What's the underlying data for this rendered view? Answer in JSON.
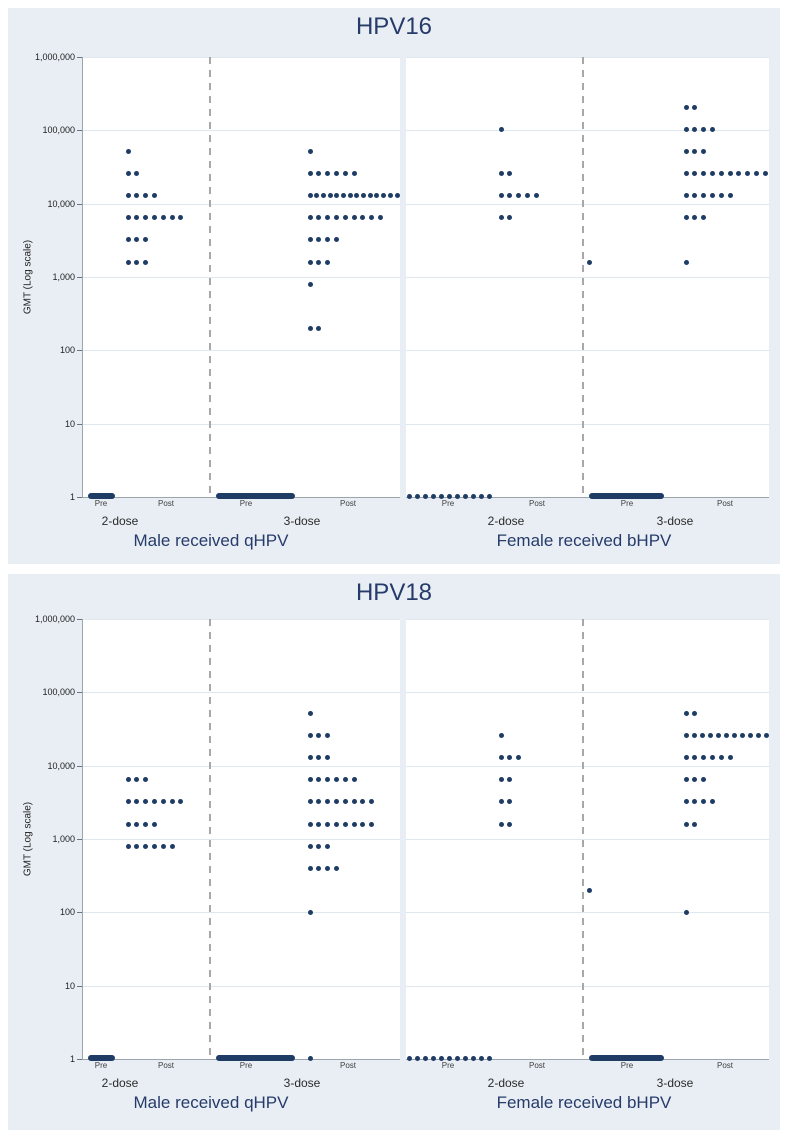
{
  "figure": {
    "background_color": "#e8eef4",
    "dot_color": "#1e3c64",
    "title_color": "#263b6a",
    "gridline_color": "#dfe8ef",
    "legend": "none"
  },
  "chart_data": [
    {
      "type": "scatter",
      "title": "HPV16",
      "ylabel": "GMT (Log scale)",
      "yscale": "log",
      "ylim": [
        1,
        1000000
      ],
      "yticks": [
        "1,000,000",
        "100,000",
        "10,000",
        "1,000",
        "100",
        "10",
        "1"
      ],
      "ytick_values": [
        1000000,
        100000,
        10000,
        1000,
        100,
        10,
        1
      ],
      "grid": "horizontal log decades",
      "panels": [
        {
          "label": "Male received qHPV",
          "groups": [
            {
              "dose": "2-dose",
              "pre_label": "Pre",
              "post_label": "Post",
              "pre": {
                "value": 1,
                "style": "dense",
                "count": null,
                "note": "dense row of overlapping points at GMT=1",
                "extra_points": []
              },
              "post_rows": [
                {
                  "value": 51200,
                  "count": 1
                },
                {
                  "value": 25600,
                  "count": 2
                },
                {
                  "value": 12800,
                  "count": 4
                },
                {
                  "value": 6400,
                  "count": 7
                },
                {
                  "value": 3200,
                  "count": 3
                },
                {
                  "value": 1600,
                  "count": 3
                }
              ]
            },
            {
              "dose": "3-dose",
              "pre_label": "Pre",
              "post_label": "Post",
              "pre": {
                "value": 1,
                "style": "dense",
                "count": null,
                "note": "dense row of overlapping points at GMT=1",
                "extra_points": []
              },
              "post_rows": [
                {
                  "value": 51200,
                  "count": 1
                },
                {
                  "value": 25600,
                  "count": 6
                },
                {
                  "value": 12800,
                  "count": 14
                },
                {
                  "value": 6400,
                  "count": 9
                },
                {
                  "value": 3200,
                  "count": 4
                },
                {
                  "value": 1600,
                  "count": 3
                },
                {
                  "value": 800,
                  "count": 1
                },
                {
                  "value": 200,
                  "count": 2
                }
              ]
            }
          ]
        },
        {
          "label": "Female received bHPV",
          "groups": [
            {
              "dose": "2-dose",
              "pre_label": "Pre",
              "post_label": "Post",
              "pre": {
                "value": 1,
                "style": "spaced",
                "count": 11,
                "note": "11 separated points at GMT=1",
                "extra_points": []
              },
              "post_rows": [
                {
                  "value": 102400,
                  "count": 1
                },
                {
                  "value": 25600,
                  "count": 2
                },
                {
                  "value": 12800,
                  "count": 5
                },
                {
                  "value": 6400,
                  "count": 2
                }
              ]
            },
            {
              "dose": "3-dose",
              "pre_label": "Pre",
              "post_label": "Post",
              "pre": {
                "value": 1,
                "style": "dense",
                "count": null,
                "note": "dense row of overlapping points at GMT=1",
                "extra_points": [
                  {
                    "value": 1600,
                    "count": 1
                  }
                ]
              },
              "post_rows": [
                {
                  "value": 204800,
                  "count": 2
                },
                {
                  "value": 102400,
                  "count": 4
                },
                {
                  "value": 51200,
                  "count": 3
                },
                {
                  "value": 25600,
                  "count": 10
                },
                {
                  "value": 12800,
                  "count": 6
                },
                {
                  "value": 6400,
                  "count": 3
                },
                {
                  "value": 1600,
                  "count": 1
                }
              ]
            }
          ]
        }
      ]
    },
    {
      "type": "scatter",
      "title": "HPV18",
      "ylabel": "GMT (Log scale)",
      "yscale": "log",
      "ylim": [
        1,
        1000000
      ],
      "yticks": [
        "1,000,000",
        "100,000",
        "10,000",
        "1,000",
        "100",
        "10",
        "1"
      ],
      "ytick_values": [
        1000000,
        100000,
        10000,
        1000,
        100,
        10,
        1
      ],
      "grid": "horizontal log decades",
      "panels": [
        {
          "label": "Male received qHPV",
          "groups": [
            {
              "dose": "2-dose",
              "pre_label": "Pre",
              "post_label": "Post",
              "pre": {
                "value": 1,
                "style": "dense",
                "count": null,
                "note": "dense row of overlapping points at GMT=1",
                "extra_points": []
              },
              "post_rows": [
                {
                  "value": 6400,
                  "count": 3
                },
                {
                  "value": 3200,
                  "count": 7
                },
                {
                  "value": 1600,
                  "count": 4
                },
                {
                  "value": 800,
                  "count": 6
                }
              ]
            },
            {
              "dose": "3-dose",
              "pre_label": "Pre",
              "post_label": "Post",
              "pre": {
                "value": 1,
                "style": "dense",
                "count": null,
                "note": "dense row of overlapping points at GMT=1",
                "extra_points": []
              },
              "post_rows": [
                {
                  "value": 51200,
                  "count": 1
                },
                {
                  "value": 25600,
                  "count": 3
                },
                {
                  "value": 12800,
                  "count": 3
                },
                {
                  "value": 6400,
                  "count": 6
                },
                {
                  "value": 3200,
                  "count": 8
                },
                {
                  "value": 1600,
                  "count": 8
                },
                {
                  "value": 800,
                  "count": 3
                },
                {
                  "value": 400,
                  "count": 4
                },
                {
                  "value": 100,
                  "count": 1
                },
                {
                  "value": 1,
                  "count": 1
                }
              ]
            }
          ]
        },
        {
          "label": "Female received bHPV",
          "groups": [
            {
              "dose": "2-dose",
              "pre_label": "Pre",
              "post_label": "Post",
              "pre": {
                "value": 1,
                "style": "spaced",
                "count": 11,
                "note": "11 separated points at GMT=1",
                "extra_points": []
              },
              "post_rows": [
                {
                  "value": 25600,
                  "count": 1
                },
                {
                  "value": 12800,
                  "count": 3
                },
                {
                  "value": 6400,
                  "count": 2
                },
                {
                  "value": 3200,
                  "count": 2
                },
                {
                  "value": 1600,
                  "count": 2
                }
              ]
            },
            {
              "dose": "3-dose",
              "pre_label": "Pre",
              "post_label": "Post",
              "pre": {
                "value": 1,
                "style": "dense",
                "count": null,
                "note": "dense row of overlapping points at GMT=1",
                "extra_points": [
                  {
                    "value": 200,
                    "count": 1
                  }
                ]
              },
              "post_rows": [
                {
                  "value": 51200,
                  "count": 2
                },
                {
                  "value": 25600,
                  "count": 11
                },
                {
                  "value": 12800,
                  "count": 6
                },
                {
                  "value": 6400,
                  "count": 3
                },
                {
                  "value": 3200,
                  "count": 4
                },
                {
                  "value": 1600,
                  "count": 2
                },
                {
                  "value": 100,
                  "count": 1
                }
              ]
            }
          ]
        }
      ]
    }
  ]
}
